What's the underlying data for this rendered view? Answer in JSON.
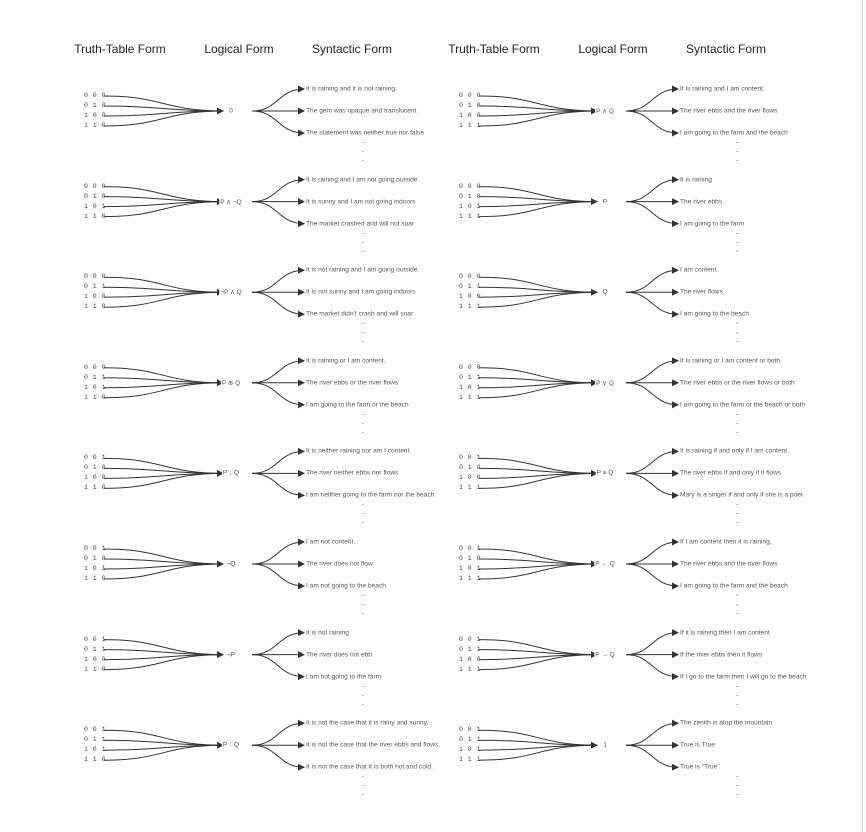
{
  "headers": {
    "left": [
      "Truth-Table Form",
      "Logical Form",
      "Syntactic Form"
    ],
    "right": [
      "Truth-Table Form",
      "Logical Form",
      "Syntactic Form"
    ]
  },
  "left_column": [
    {
      "truth_rows": [
        "0 0 0",
        "0 1 0",
        "1 0 0",
        "1 1 0"
      ],
      "logical_form": "0",
      "sentences": [
        "It is raining and it is not raining.",
        "The gem was opaque and translucent",
        "The statement was neither true nor false"
      ]
    },
    {
      "truth_rows": [
        "0 0 0",
        "0 1 0",
        "1 0 1",
        "1 1 0"
      ],
      "logical_form": "P ∧ ¬Q",
      "sentences": [
        "It is raining and I am not going outside",
        "It is sunny and I am not going indoors",
        "The market crashed and will not soar"
      ]
    },
    {
      "truth_rows": [
        "0 0 0",
        "0 1 1",
        "1 0 0",
        "1 1 0"
      ],
      "logical_form": "¬P ∧ Q",
      "sentences": [
        "It is not raining and I am going outside.",
        "It is not sunny and I am going indoors",
        "The market didn't crash and will soar"
      ]
    },
    {
      "truth_rows": [
        "0 0 0",
        "0 1 1",
        "1 0 1",
        "1 1 0"
      ],
      "logical_form": "P ⊕ Q",
      "sentences": [
        "It is raining or I am content.",
        "The river ebbs or the river flows",
        "I am going to the farm or the beach"
      ]
    },
    {
      "truth_rows": [
        "0 0 1",
        "0 1 0",
        "1 0 0",
        "1 1 0"
      ],
      "logical_form": "P ↓ Q",
      "sentences": [
        "It is neither raining nor am I content.",
        "The river neither ebbs nor flows",
        "I am neither going to the farm nor the beach"
      ]
    },
    {
      "truth_rows": [
        "0 0 1",
        "0 1 0",
        "1 0 1",
        "1 1 0"
      ],
      "logical_form": "¬Q",
      "sentences": [
        "I am not content.",
        "The river does not flow",
        "I am not going to the beach"
      ]
    },
    {
      "truth_rows": [
        "0 0 1",
        "0 1 1",
        "1 0 0",
        "1 1 0"
      ],
      "logical_form": "¬P",
      "sentences": [
        "It is not raining",
        "The river does not ebb",
        "I am not going to the farm"
      ]
    },
    {
      "truth_rows": [
        "0 0 1",
        "0 1 1",
        "1 0 1",
        "1 1 0"
      ],
      "logical_form": "P ↑ Q",
      "sentences": [
        "It is not the case that it is rainy and sunny.",
        "It is not the case that the river ebbs and flows.",
        "It is not the case that it is both hot and cold."
      ]
    }
  ],
  "right_column": [
    {
      "truth_rows": [
        "0 0 0",
        "0 1 0",
        "1 0 0",
        "1 1 1"
      ],
      "logical_form": "P ∧ Q",
      "sentences": [
        "It is raining and I am content.",
        "The river ebbs and the river flows",
        "I am going to the farm and the beach"
      ]
    },
    {
      "truth_rows": [
        "0 0 0",
        "0 1 0",
        "1 0 1",
        "1 1 1"
      ],
      "logical_form": "P",
      "sentences": [
        "It is raining",
        "The river ebbs",
        "I am going to the farm"
      ]
    },
    {
      "truth_rows": [
        "0 0 0",
        "0 1 1",
        "1 0 0",
        "1 1 1"
      ],
      "logical_form": "Q",
      "sentences": [
        "I am content.",
        "The river flows",
        "I am going to the beach"
      ]
    },
    {
      "truth_rows": [
        "0 0 0",
        "0 1 1",
        "1 0 1",
        "1 1 1"
      ],
      "logical_form": "P ∨ Q",
      "sentences": [
        "It is raining or I am content or both.",
        "The river ebbs or the river flows or both",
        "I am going to the farm or the beach or both"
      ]
    },
    {
      "truth_rows": [
        "0 0 1",
        "0 1 0",
        "1 0 0",
        "1 1 1"
      ],
      "logical_form": "P ≡ Q",
      "sentences": [
        "It is raining if and only if I am content.",
        "The river ebbs if and only if it flows",
        "Mary is a singer if and only if she is a poet"
      ]
    },
    {
      "truth_rows": [
        "0 0 1",
        "0 1 0",
        "1 0 1",
        "1 1 1"
      ],
      "logical_form": "P ← Q",
      "sentences": [
        "If I am content then it is raining.",
        "The river ebbs and the river flows",
        "I am going to the farm and the beach"
      ]
    },
    {
      "truth_rows": [
        "0 0 1",
        "0 1 1",
        "1 0 0",
        "1 1 1"
      ],
      "logical_form": "P → Q",
      "sentences": [
        "If it is raining then I am content",
        "If the river ebbs then it flows",
        "If I go to the farm then I will go to the beach"
      ]
    },
    {
      "truth_rows": [
        "0 0 1",
        "0 1 1",
        "1 0 1",
        "1 1 1"
      ],
      "logical_form": "1",
      "sentences": [
        "The zenith is atop the mountain",
        "True is True",
        "True is \"True\""
      ]
    }
  ]
}
